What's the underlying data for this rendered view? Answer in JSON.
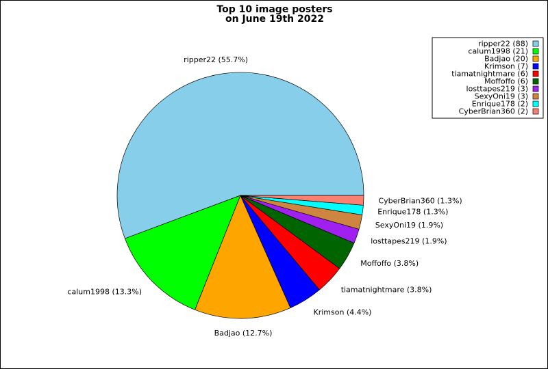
{
  "chart_data": {
    "type": "pie",
    "title": "Top 10 image posters",
    "subtitle": "on June 19th 2022",
    "legend_position": "top-right",
    "slices": [
      {
        "name": "ripper22",
        "value": 88,
        "label": "ripper22 (55.7%)",
        "legend": "ripper22 (88)",
        "color": "#87ceeb"
      },
      {
        "name": "calum1998",
        "value": 21,
        "label": "calum1998 (13.3%)",
        "legend": "calum1998 (21)",
        "color": "#00ff00"
      },
      {
        "name": "Badjao",
        "value": 20,
        "label": "Badjao (12.7%)",
        "legend": "Badjao (20)",
        "color": "#ffa500"
      },
      {
        "name": "Krimson",
        "value": 7,
        "label": "Krimson (4.4%)",
        "legend": "Krimson (7)",
        "color": "#0000ff"
      },
      {
        "name": "tiamatnightmare",
        "value": 6,
        "label": "tiamatnightmare (3.8%)",
        "legend": "tiamatnightmare (6)",
        "color": "#ff0000"
      },
      {
        "name": "Moffoffo",
        "value": 6,
        "label": "Moffoffo (3.8%)",
        "legend": "Moffoffo (6)",
        "color": "#006400"
      },
      {
        "name": "losttapes219",
        "value": 3,
        "label": "losttapes219 (1.9%)",
        "legend": "losttapes219 (3)",
        "color": "#a020f0"
      },
      {
        "name": "SexyOni19",
        "value": 3,
        "label": "SexyOni19 (1.9%)",
        "legend": "SexyOni19 (3)",
        "color": "#cd853f"
      },
      {
        "name": "Enrique178",
        "value": 2,
        "label": "Enrique178 (1.3%)",
        "legend": "Enrique178 (2)",
        "color": "#00ffff"
      },
      {
        "name": "CyberBrian360",
        "value": 2,
        "label": "CyberBrian360 (1.3%)",
        "legend": "CyberBrian360 (2)",
        "color": "#fa8072"
      }
    ]
  }
}
